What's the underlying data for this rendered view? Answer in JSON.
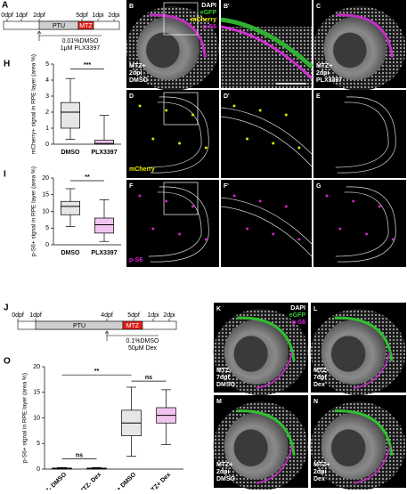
{
  "figure": {
    "panel_labels": [
      "A",
      "B",
      "B'",
      "C",
      "D",
      "D'",
      "E",
      "F",
      "F'",
      "G",
      "H",
      "I",
      "J",
      "K",
      "L",
      "M",
      "N",
      "O"
    ],
    "timeline_a": {
      "times": [
        "0dpf",
        "1dpf",
        "2dpf",
        "5dpf",
        "1dpi",
        "2dpi"
      ],
      "ptu": "PTU",
      "mtz": "MTZ",
      "treatment": [
        "0.01%DMSO",
        "1μM PLX3397"
      ]
    },
    "timeline_j": {
      "times": [
        "0dpf",
        "1dpf",
        "4dpf",
        "5dpf",
        "1dpi",
        "2dpi"
      ],
      "ptu": "PTU",
      "mtz": "MTZ",
      "treatment": [
        "0.1%DMSO",
        "50μM Dex"
      ]
    },
    "image_labels": {
      "b_channels": [
        "DAPI",
        "eGFP",
        "mCherry",
        "p-S6"
      ],
      "b_condition": [
        "MTZ+",
        "2dpi",
        "DMSO"
      ],
      "c_condition": [
        "MTZ+",
        "2dpi",
        "PLX3397"
      ],
      "d_channel": "mCherry",
      "f_channel": "p-S6",
      "k_channels": [
        "DAPI",
        "eGFP",
        "p-S6"
      ],
      "k_condition": [
        "MTZ-",
        "7dpf",
        "DMSO"
      ],
      "l_condition": [
        "MTZ-",
        "7dpf",
        "Dex"
      ],
      "m_condition": [
        "MTZ+",
        "2dpi",
        "DMSO"
      ],
      "n_condition": [
        "MTZ+",
        "2dpi",
        "Dex"
      ]
    }
  },
  "chart_data": [
    {
      "type": "box",
      "ylabel": "mCherry+ signal in RPE layer (area %)",
      "categories": [
        "DMSO",
        "PLX3397"
      ],
      "boxes": [
        {
          "min": 0.3,
          "q1": 1.0,
          "median": 2.0,
          "q3": 2.6,
          "max": 4.1,
          "color": "#e6e6e6"
        },
        {
          "min": 0,
          "q1": 0,
          "median": 0.05,
          "q3": 0.25,
          "max": 1.8,
          "color": "#f0c4ef"
        }
      ],
      "ylim": [
        0,
        5
      ],
      "yticks": [
        0,
        1,
        2,
        3,
        4,
        5
      ],
      "annotations": [
        "***"
      ]
    },
    {
      "type": "box",
      "ylabel": "p-S6+ signal in RPE layer (area %)",
      "categories": [
        "DMSO",
        "PLX3397"
      ],
      "boxes": [
        {
          "min": 5.5,
          "q1": 9,
          "median": 11.5,
          "q3": 13,
          "max": 16.8,
          "color": "#e6e6e6"
        },
        {
          "min": 1,
          "q1": 3.5,
          "median": 6,
          "q3": 8,
          "max": 13.5,
          "color": "#f0c4ef"
        }
      ],
      "ylim": [
        0,
        20
      ],
      "yticks": [
        0,
        5,
        10,
        15,
        20
      ],
      "annotations": [
        "**"
      ]
    },
    {
      "type": "box",
      "ylabel": "p-S6+ signal in RPE layer (area %)",
      "categories": [
        "MTZ- DMSO",
        "MTZ- Dex",
        "MTZ+ DMSO",
        "MTZ+ Dex"
      ],
      "boxes": [
        {
          "min": 0,
          "q1": 0,
          "median": 0.1,
          "q3": 0.2,
          "max": 0.3,
          "color": "#e6e6e6"
        },
        {
          "min": 0,
          "q1": 0,
          "median": 0.1,
          "q3": 0.2,
          "max": 0.3,
          "color": "#f0c4ef"
        },
        {
          "min": 2.5,
          "q1": 6.5,
          "median": 9,
          "q3": 11.5,
          "max": 16,
          "color": "#e6e6e6"
        },
        {
          "min": 4.8,
          "q1": 9,
          "median": 10.5,
          "q3": 12,
          "max": 15.5,
          "color": "#f0c4ef"
        }
      ],
      "ylim": [
        0,
        20
      ],
      "yticks": [
        0,
        5,
        10,
        15,
        20
      ],
      "annotations": [
        "**",
        "ns",
        "ns"
      ]
    }
  ]
}
